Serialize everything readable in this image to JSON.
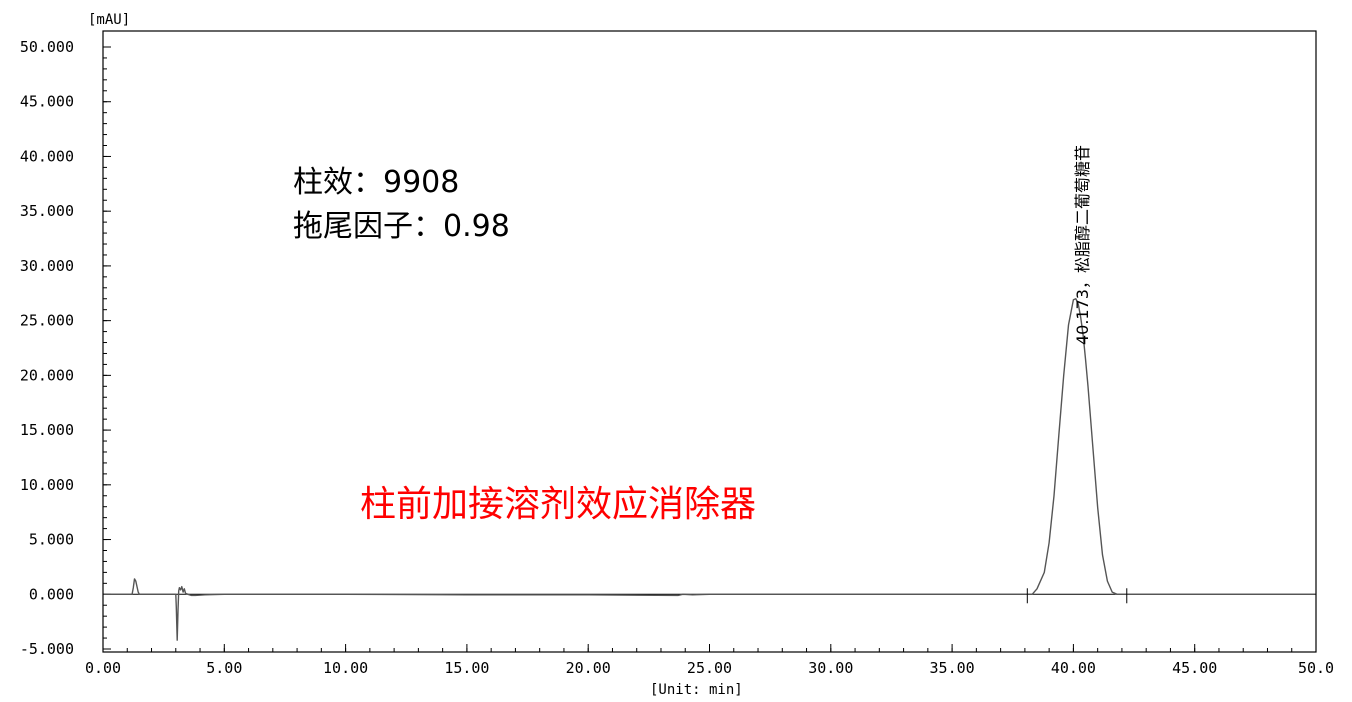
{
  "chart_data": {
    "type": "line",
    "ylabel": "[mAU]",
    "xlabel": "[Unit: min]",
    "xlim": [
      0,
      50
    ],
    "ylim": [
      -5,
      50
    ],
    "x_ticks": [
      "0.00",
      "5.00",
      "10.00",
      "15.00",
      "20.00",
      "25.00",
      "30.00",
      "35.00",
      "40.00",
      "45.00",
      "50.0"
    ],
    "y_ticks": [
      "50.000",
      "45.000",
      "40.000",
      "35.000",
      "30.000",
      "25.000",
      "20.000",
      "15.000",
      "10.000",
      "5.000",
      "0.000",
      "-5.000"
    ],
    "series": [
      {
        "color": "#555555",
        "x": [
          0.0,
          0.5,
          1.2,
          1.25,
          1.3,
          1.35,
          1.45,
          1.5,
          1.6,
          1.7,
          1.8,
          3.0,
          3.02,
          3.06,
          3.09,
          3.12,
          3.15,
          3.2,
          3.25,
          3.3,
          3.35,
          3.4,
          3.5,
          3.65,
          3.8,
          4.2,
          5.0,
          7.5,
          10.0,
          15.0,
          20.0,
          23.7,
          23.9,
          24.3,
          25.0,
          30.0,
          35.0,
          38.3,
          38.5,
          38.8,
          39.0,
          39.2,
          39.4,
          39.6,
          39.8,
          40.0,
          40.1,
          40.2,
          40.3,
          40.4,
          40.5,
          40.6,
          40.8,
          41.0,
          41.2,
          41.4,
          41.6,
          41.8,
          42.0,
          42.5,
          45.0,
          50.0
        ],
        "y": [
          0.0,
          0.0,
          0.0,
          0.6,
          1.4,
          1.2,
          0.2,
          0.0,
          0.0,
          0.0,
          0.0,
          0.0,
          -1.2,
          -4.2,
          -1.5,
          0.3,
          0.6,
          0.4,
          0.7,
          0.2,
          0.5,
          0.1,
          0.0,
          -0.1,
          -0.1,
          -0.05,
          0.0,
          0.0,
          0.0,
          -0.05,
          -0.05,
          -0.1,
          0.0,
          -0.05,
          0.0,
          0.0,
          0.0,
          0.0,
          0.5,
          2.0,
          4.7,
          9.0,
          14.5,
          20.0,
          24.6,
          26.9,
          27.0,
          26.5,
          25.3,
          23.7,
          21.5,
          19.0,
          13.5,
          7.9,
          3.6,
          1.2,
          0.2,
          0.0,
          0.0,
          0.0,
          0.0,
          0.0
        ]
      }
    ],
    "annotations": [
      {
        "text": "柱效：9908"
      },
      {
        "text": "拖尾因子：0.98"
      },
      {
        "text": "柱前加接溶剂效应消除器",
        "color": "#ff0000"
      },
      {
        "text": "40.173，松脂醇二葡萄糖苷",
        "x": 40.1
      }
    ],
    "event_ticks": [
      38.1,
      42.2
    ]
  }
}
